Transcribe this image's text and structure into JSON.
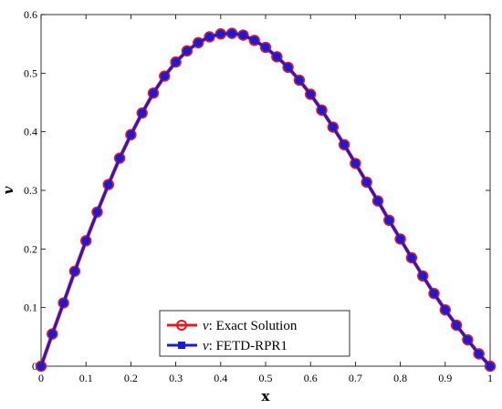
{
  "chart_data": {
    "type": "line",
    "xlabel": "x",
    "ylabel": "v",
    "xlim": [
      0,
      1
    ],
    "ylim": [
      0,
      0.6
    ],
    "xticks": [
      "0",
      "0.1",
      "0.2",
      "0.3",
      "0.4",
      "0.5",
      "0.6",
      "0.7",
      "0.8",
      "0.9",
      "1"
    ],
    "yticks": [
      "0",
      "0.1",
      "0.2",
      "0.3",
      "0.4",
      "0.5",
      "0.6"
    ],
    "grid": false,
    "legend_position": "bottom-center",
    "x": [
      0,
      0.025,
      0.05,
      0.075,
      0.1,
      0.125,
      0.15,
      0.175,
      0.2,
      0.225,
      0.25,
      0.275,
      0.3,
      0.325,
      0.35,
      0.375,
      0.4,
      0.425,
      0.45,
      0.475,
      0.5,
      0.525,
      0.55,
      0.575,
      0.6,
      0.625,
      0.65,
      0.675,
      0.7,
      0.725,
      0.75,
      0.775,
      0.8,
      0.825,
      0.85,
      0.875,
      0.9,
      0.925,
      0.95,
      0.975,
      1
    ],
    "series": [
      {
        "name_prefix": "v",
        "name_suffix": ": Exact Solution",
        "color": "#e6171e",
        "marker": "circle-open",
        "values": [
          0,
          0.055,
          0.108,
          0.162,
          0.214,
          0.263,
          0.31,
          0.355,
          0.395,
          0.432,
          0.466,
          0.495,
          0.519,
          0.538,
          0.552,
          0.562,
          0.567,
          0.568,
          0.565,
          0.556,
          0.544,
          0.528,
          0.51,
          0.488,
          0.464,
          0.437,
          0.408,
          0.378,
          0.346,
          0.314,
          0.282,
          0.249,
          0.217,
          0.185,
          0.154,
          0.124,
          0.096,
          0.07,
          0.045,
          0.021,
          0
        ]
      },
      {
        "name_prefix": "v",
        "name_suffix": ": FETD-RPR1",
        "color": "#1a1adb",
        "marker": "square-filled",
        "values": [
          0,
          0.055,
          0.108,
          0.162,
          0.214,
          0.263,
          0.31,
          0.355,
          0.395,
          0.432,
          0.466,
          0.495,
          0.519,
          0.538,
          0.552,
          0.562,
          0.567,
          0.568,
          0.565,
          0.556,
          0.544,
          0.528,
          0.51,
          0.488,
          0.464,
          0.437,
          0.408,
          0.378,
          0.346,
          0.314,
          0.282,
          0.249,
          0.217,
          0.185,
          0.154,
          0.124,
          0.096,
          0.07,
          0.045,
          0.021,
          0
        ]
      }
    ]
  }
}
